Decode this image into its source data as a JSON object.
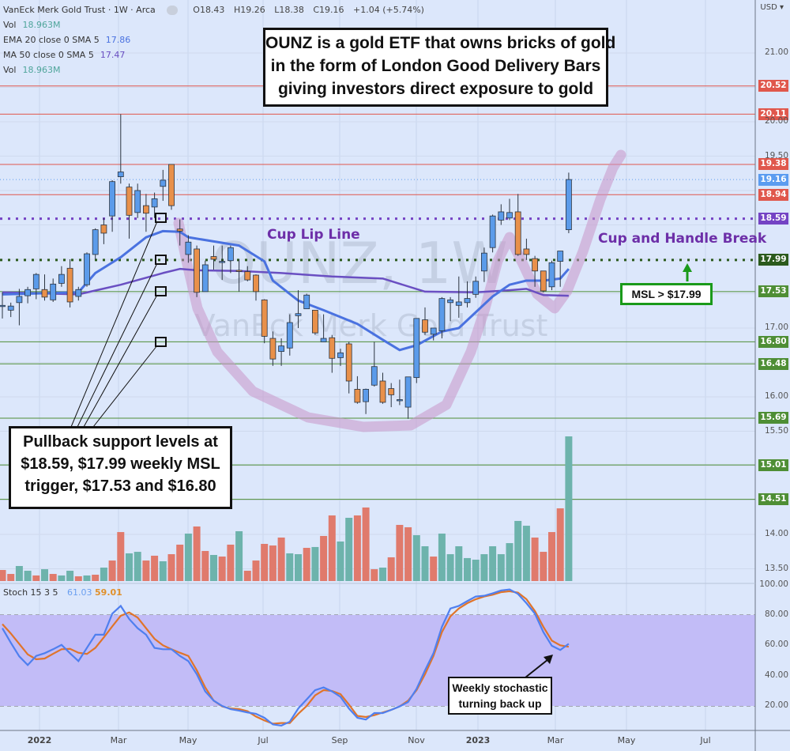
{
  "header": {
    "symbol_title": "VanEck Merk Gold Trust · 1W · Arca",
    "ohlc": {
      "open": "O18.43",
      "high": "H19.26",
      "low": "L18.38",
      "close": "C19.16",
      "change": "+1.04 (+5.74%)"
    },
    "indicators": [
      {
        "name": "Vol",
        "value": "18.963M",
        "color": "#4fa59b"
      },
      {
        "name": "EMA 20 close 0 SMA 5",
        "value": "17.86",
        "color": "#4a72e0"
      },
      {
        "name": "MA 50 close 0 SMA 5",
        "value": "17.47",
        "color": "#6a4fc2"
      },
      {
        "name": "Vol",
        "value": "18.963M",
        "color": "#4fa59b"
      }
    ]
  },
  "axis": {
    "currency": "USD",
    "price_ticks": [
      "21.00",
      "20.00",
      "19.50",
      "17.00",
      "16.00",
      "15.50",
      "14.00",
      "13.50"
    ],
    "stoch_ticks": [
      "100.00",
      "80.00",
      "60.00",
      "40.00",
      "20.00"
    ],
    "time_ticks": [
      "2022",
      "Mar",
      "May",
      "Jul",
      "Sep",
      "Nov",
      "2023",
      "Mar",
      "May",
      "Jul"
    ]
  },
  "levels": [
    {
      "price": 20.52,
      "label": "20.52",
      "color": "#e0574c",
      "style": "solid"
    },
    {
      "price": 20.11,
      "label": "20.11",
      "color": "#e0574c",
      "style": "solid"
    },
    {
      "price": 19.38,
      "label": "19.38",
      "color": "#e0574c",
      "style": "solid"
    },
    {
      "price": 19.16,
      "label": "19.16",
      "color": "#5b9cf0",
      "style": "dotted-thin"
    },
    {
      "price": 18.94,
      "label": "18.94",
      "color": "#e0574c",
      "style": "solid"
    },
    {
      "price": 18.59,
      "label": "18.59",
      "color": "#7443c4",
      "style": "dotted-thick"
    },
    {
      "price": 17.99,
      "label": "17.99",
      "color": "#2b5a1c",
      "style": "dotted-thick"
    },
    {
      "price": 17.53,
      "label": "17.53",
      "color": "#4e8e35",
      "style": "solid"
    },
    {
      "price": 16.8,
      "label": "16.80",
      "color": "#4e8e35",
      "style": "solid"
    },
    {
      "price": 16.48,
      "label": "16.48",
      "color": "#4e8e35",
      "style": "solid"
    },
    {
      "price": 15.69,
      "label": "15.69",
      "color": "#4e8e35",
      "style": "solid"
    },
    {
      "price": 15.01,
      "label": "15.01",
      "color": "#4e8e35",
      "style": "solid"
    },
    {
      "price": 14.51,
      "label": "14.51",
      "color": "#4e8e35",
      "style": "solid"
    }
  ],
  "annotations": {
    "headline": [
      "OUNZ is a gold ETF that owns bricks of gold",
      "in the form of London Good Delivery Bars",
      "giving investors direct exposure to gold"
    ],
    "pullback": [
      "Pullback support levels at",
      "$18.59, $17.99 weekly MSL",
      "trigger, $17.53 and $16.80"
    ],
    "cup_lip": "Cup Lip Line",
    "cup_handle": "Cup and Handle Break",
    "msl": "MSL > $17.99",
    "stoch_note": [
      "Weekly stochastic",
      "turning back up"
    ],
    "watermark_symbol": "OUNZ, 1W",
    "watermark_name": "VanEck Merk Gold Trust"
  },
  "stoch_legend": {
    "name": "Stoch 15 3 5",
    "k": "61.03",
    "d": "59.01"
  },
  "colors": {
    "up": "#5b9bea",
    "down": "#e8904a",
    "vol_up": "#6db3ac",
    "vol_down": "#e07a6c",
    "ema": "#4a72e0",
    "ma": "#6a4fc2",
    "stoch_k": "#4f7fef",
    "stoch_d": "#e0742a",
    "stoch_band": "#c2bcf7",
    "cup": "#c896c8"
  },
  "chart_data": {
    "type": "candlestick",
    "title": "VanEck Merk Gold Trust (OUNZ) weekly",
    "ylim": [
      13.3,
      21.6
    ],
    "ohlc_order": [
      "open",
      "high",
      "low",
      "close"
    ],
    "ohlc": [
      [
        17.33,
        17.52,
        17.14,
        17.33
      ],
      [
        17.26,
        17.37,
        17.16,
        17.32
      ],
      [
        17.37,
        17.57,
        17.04,
        17.46
      ],
      [
        17.47,
        17.6,
        17.36,
        17.56
      ],
      [
        17.57,
        17.8,
        17.42,
        17.78
      ],
      [
        17.56,
        17.78,
        17.4,
        17.45
      ],
      [
        17.41,
        17.72,
        17.38,
        17.64
      ],
      [
        17.65,
        17.9,
        17.6,
        17.78
      ],
      [
        17.87,
        18.0,
        17.3,
        17.38
      ],
      [
        17.46,
        17.6,
        17.4,
        17.56
      ],
      [
        17.63,
        18.1,
        17.6,
        18.08
      ],
      [
        18.07,
        18.45,
        18.0,
        18.43
      ],
      [
        18.5,
        18.6,
        18.22,
        18.38
      ],
      [
        18.63,
        19.15,
        18.4,
        19.13
      ],
      [
        19.2,
        20.11,
        19.1,
        19.27
      ],
      [
        19.05,
        19.1,
        18.3,
        18.64
      ],
      [
        18.68,
        19.1,
        18.6,
        19.0
      ],
      [
        18.78,
        18.95,
        18.4,
        18.67
      ],
      [
        18.76,
        18.97,
        18.6,
        18.88
      ],
      [
        19.06,
        19.3,
        18.85,
        19.15
      ],
      [
        19.38,
        19.38,
        18.72,
        18.78
      ],
      [
        18.44,
        18.58,
        18.2,
        18.41
      ],
      [
        18.07,
        18.35,
        17.95,
        18.25
      ],
      [
        18.15,
        18.2,
        17.45,
        17.52
      ],
      [
        17.53,
        17.98,
        17.53,
        17.92
      ],
      [
        18.04,
        18.2,
        17.85,
        18.0
      ],
      [
        17.96,
        18.2,
        17.7,
        17.97
      ],
      [
        17.98,
        18.2,
        17.8,
        18.17
      ],
      [
        17.84,
        18.0,
        17.53,
        17.83
      ],
      [
        17.82,
        17.9,
        17.68,
        17.7
      ],
      [
        17.77,
        17.78,
        17.4,
        17.53
      ],
      [
        17.41,
        17.42,
        16.78,
        16.88
      ],
      [
        16.85,
        16.95,
        16.45,
        16.55
      ],
      [
        16.66,
        16.85,
        16.45,
        16.74
      ],
      [
        16.71,
        17.2,
        16.6,
        17.08
      ],
      [
        17.18,
        17.55,
        17.0,
        17.21
      ],
      [
        17.28,
        17.5,
        17.28,
        17.48
      ],
      [
        17.26,
        17.26,
        16.9,
        16.93
      ],
      [
        16.8,
        17.2,
        16.8,
        16.85
      ],
      [
        16.86,
        16.9,
        16.35,
        16.56
      ],
      [
        16.57,
        16.7,
        16.45,
        16.64
      ],
      [
        16.77,
        16.8,
        16.05,
        16.23
      ],
      [
        16.11,
        16.3,
        15.9,
        15.92
      ],
      [
        15.93,
        16.12,
        15.75,
        16.11
      ],
      [
        16.17,
        16.8,
        16.15,
        16.44
      ],
      [
        16.23,
        16.35,
        15.9,
        15.92
      ],
      [
        16.12,
        16.2,
        15.85,
        16.03
      ],
      [
        15.95,
        16.25,
        15.88,
        15.96
      ],
      [
        15.85,
        16.29,
        15.68,
        16.29
      ],
      [
        16.28,
        17.14,
        16.2,
        17.14
      ],
      [
        17.12,
        17.3,
        16.9,
        16.94
      ],
      [
        16.91,
        17.0,
        16.82,
        17.0
      ],
      [
        16.96,
        17.45,
        16.85,
        17.43
      ],
      [
        17.37,
        17.45,
        17.1,
        17.41
      ],
      [
        17.33,
        17.75,
        17.15,
        17.38
      ],
      [
        17.37,
        17.68,
        17.3,
        17.43
      ],
      [
        17.49,
        17.75,
        17.44,
        17.68
      ],
      [
        17.83,
        18.17,
        17.67,
        18.09
      ],
      [
        18.17,
        18.65,
        18.1,
        18.63
      ],
      [
        18.57,
        18.8,
        18.5,
        18.69
      ],
      [
        18.6,
        18.88,
        18.57,
        18.68
      ],
      [
        18.69,
        18.95,
        18.05,
        18.07
      ],
      [
        18.15,
        18.3,
        17.99,
        18.07
      ],
      [
        18.01,
        18.05,
        17.6,
        17.83
      ],
      [
        17.83,
        17.83,
        17.52,
        17.54
      ],
      [
        17.6,
        17.98,
        17.55,
        17.95
      ],
      [
        17.97,
        18.12,
        17.6,
        18.12
      ],
      [
        18.43,
        19.26,
        18.38,
        19.16
      ]
    ],
    "volume_millions": [
      1.45,
      0.93,
      1.97,
      1.35,
      0.73,
      1.55,
      0.93,
      0.73,
      1.35,
      0.62,
      0.73,
      0.83,
      1.76,
      2.69,
      6.42,
      3.63,
      3.83,
      2.69,
      3.32,
      2.59,
      3.52,
      4.77,
      6.22,
      7.15,
      3.94,
      3.42,
      3.21,
      4.77,
      6.53,
      1.35,
      2.69,
      4.87,
      4.66,
      5.7,
      3.63,
      3.52,
      4.35,
      4.46,
      5.91,
      8.6,
      5.18,
      8.29,
      8.6,
      9.64,
      1.55,
      1.76,
      3.11,
      7.36,
      7.05,
      6.01,
      4.56,
      3.21,
      6.22,
      3.52,
      4.56,
      3.01,
      2.8,
      3.52,
      4.56,
      3.52,
      4.97,
      7.88,
      7.25,
      5.7,
      3.83,
      6.42,
      9.53,
      18.963
    ],
    "volume_direction": "dduududuudududduuddudduddudduddddduududduuddduddduuduuuuuuuuuuudddduu",
    "stoch_k": [
      71.3,
      61.7,
      52.7,
      47,
      53,
      54.8,
      57.4,
      60.3,
      54.8,
      49.6,
      58.3,
      67,
      67,
      80.9,
      86,
      77.4,
      71.3,
      67,
      58.3,
      57.4,
      57.4,
      53,
      49.6,
      40.9,
      29.6,
      23.5,
      20,
      17.9,
      16.9,
      15.7,
      14.8,
      12.2,
      7.8,
      7,
      9.6,
      18.3,
      24.3,
      30.4,
      32.2,
      29.6,
      26,
      18.3,
      12.2,
      11,
      15.3,
      15.3,
      17.4,
      19.7,
      22.6,
      31.3,
      43.5,
      54.8,
      72.2,
      84.3,
      86,
      89.2,
      92.2,
      92.7,
      94.3,
      96.2,
      96.9,
      93.9,
      87.8,
      80.9,
      68.7,
      59.7,
      56.9,
      61.03
    ],
    "stoch_d": [
      74,
      67.8,
      60.9,
      54,
      50.8,
      51.3,
      54.4,
      57.4,
      57.7,
      55.1,
      54.3,
      58.3,
      65.2,
      72.5,
      79.5,
      81.7,
      78.3,
      71.3,
      64.3,
      60,
      57.4,
      55.1,
      53,
      43.5,
      32.2,
      23.5,
      19.7,
      18.3,
      17.9,
      16.5,
      13,
      10.4,
      8.3,
      8.7,
      8.7,
      14.8,
      20,
      27,
      30.4,
      29.9,
      27.8,
      20.9,
      13.4,
      12.7,
      13.9,
      15.7,
      17.4,
      19.7,
      23.5,
      30.4,
      40.9,
      53,
      68.7,
      79.1,
      84.3,
      87.8,
      90.4,
      92.2,
      93.4,
      95.1,
      95.7,
      94.8,
      90.4,
      82.6,
      72.2,
      63.1,
      60,
      59.01
    ],
    "stoch_ylim": [
      0,
      110
    ],
    "ema20": [
      [
        0,
        17.49
      ],
      [
        9,
        17.52
      ],
      [
        11,
        17.8
      ],
      [
        14,
        18.03
      ],
      [
        17,
        18.32
      ],
      [
        19,
        18.41
      ],
      [
        21,
        18.4
      ],
      [
        22,
        18.32
      ],
      [
        25,
        18.26
      ],
      [
        28,
        18.2
      ],
      [
        31,
        17.97
      ],
      [
        32,
        17.69
      ],
      [
        35,
        17.4
      ],
      [
        38,
        17.26
      ],
      [
        42,
        17.06
      ],
      [
        45,
        16.83
      ],
      [
        47,
        16.68
      ],
      [
        49,
        16.75
      ],
      [
        52,
        16.95
      ],
      [
        54,
        17.0
      ],
      [
        56,
        17.23
      ],
      [
        58,
        17.46
      ],
      [
        60,
        17.63
      ],
      [
        62,
        17.69
      ],
      [
        64,
        17.69
      ],
      [
        66,
        17.72
      ],
      [
        67,
        17.86
      ]
    ],
    "ma50": [
      [
        0,
        17.52
      ],
      [
        9,
        17.49
      ],
      [
        14,
        17.63
      ],
      [
        19,
        17.8
      ],
      [
        21,
        17.86
      ],
      [
        23,
        17.84
      ],
      [
        28,
        17.83
      ],
      [
        33,
        17.8
      ],
      [
        39,
        17.75
      ],
      [
        45,
        17.72
      ],
      [
        50,
        17.53
      ],
      [
        56,
        17.52
      ],
      [
        60,
        17.55
      ],
      [
        62,
        17.57
      ],
      [
        64,
        17.48
      ],
      [
        67,
        17.47
      ]
    ]
  }
}
